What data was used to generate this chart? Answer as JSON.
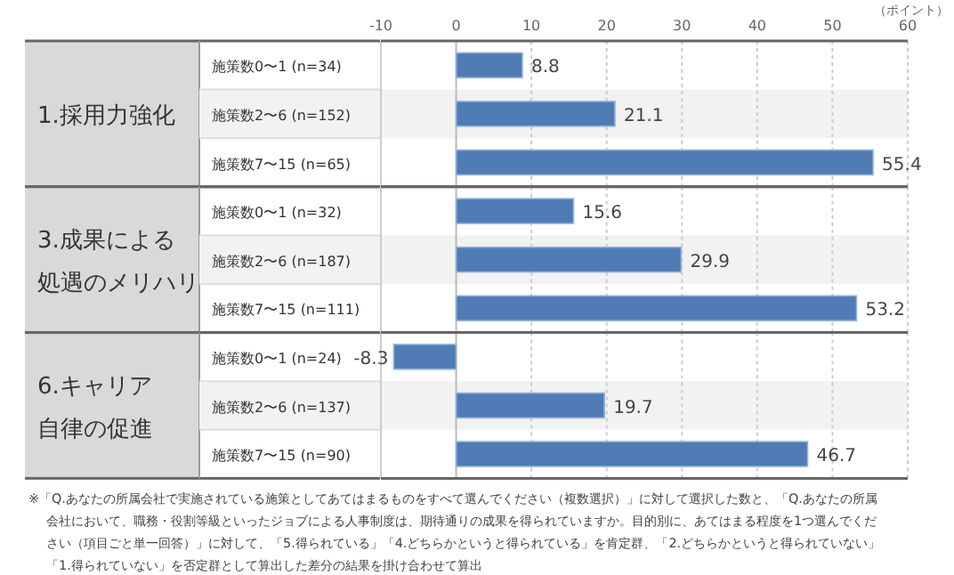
{
  "chart_data": [
    {
      "type": "bar",
      "orientation": "horizontal",
      "title": "1.採用力強化",
      "xlabel": "（ポイント）",
      "categories": [
        "施策数0〜1 (n=34)",
        "施策数2〜6 (n=152)",
        "施策数7〜15 (n=65)"
      ],
      "values": [
        8.8,
        21.1,
        55.4
      ],
      "color": "#4f7cb5",
      "data_labels": true,
      "xlim": [
        -10,
        60
      ],
      "xticks": [
        -10,
        0,
        10,
        20,
        30,
        40,
        50,
        60
      ],
      "grid": "x"
    },
    {
      "type": "bar",
      "orientation": "horizontal",
      "title": "3.成果による処遇のメリハリ",
      "categories": [
        "施策数0〜1 (n=32)",
        "施策数2〜6 (n=187)",
        "施策数7〜15 (n=111)"
      ],
      "values": [
        15.6,
        29.9,
        53.2
      ],
      "color": "#4f7cb5",
      "data_labels": true,
      "xlim": [
        -10,
        60
      ],
      "xticks": [
        -10,
        0,
        10,
        20,
        30,
        40,
        50,
        60
      ],
      "grid": "x",
      "tick_labels": "y"
    },
    {
      "type": "bar",
      "orientation": "horizontal",
      "title": "6.キャリア自律の促進",
      "categories": [
        "施策数0〜1 (n=24)",
        "施策数2〜6 (n=137)",
        "施策数7〜15 (n=90)"
      ],
      "values": [
        -8.3,
        19.7,
        46.7
      ],
      "color": "#4f7cb5",
      "data_labels": true,
      "xlim": [
        -10,
        60
      ],
      "xticks": [
        -10,
        0,
        10,
        20,
        30,
        40,
        50,
        60
      ],
      "grid": "x",
      "tick_labels": "y",
      "annotations": [
        "※「Q.あなたの所属会社で実施されている施策としてあてはまるものをすべて選んでください（複数選択）」に対して選択した数と、「Q.あなたの所属会社において、職務・役割等級といったジョブによる人事制度は、期待通りの成果を得られていますか。目的別に、あてはまる程度を1つ選んでください（項目ごと単一回答）」に対して、「5.得られている」「4.どちらかというと得られている」を肯定群、「2.どちらかというと得られていない」「1.得られていない」を否定群として算出した差分の結果を掛け合わせて算出"
      ]
    }
  ]
}
